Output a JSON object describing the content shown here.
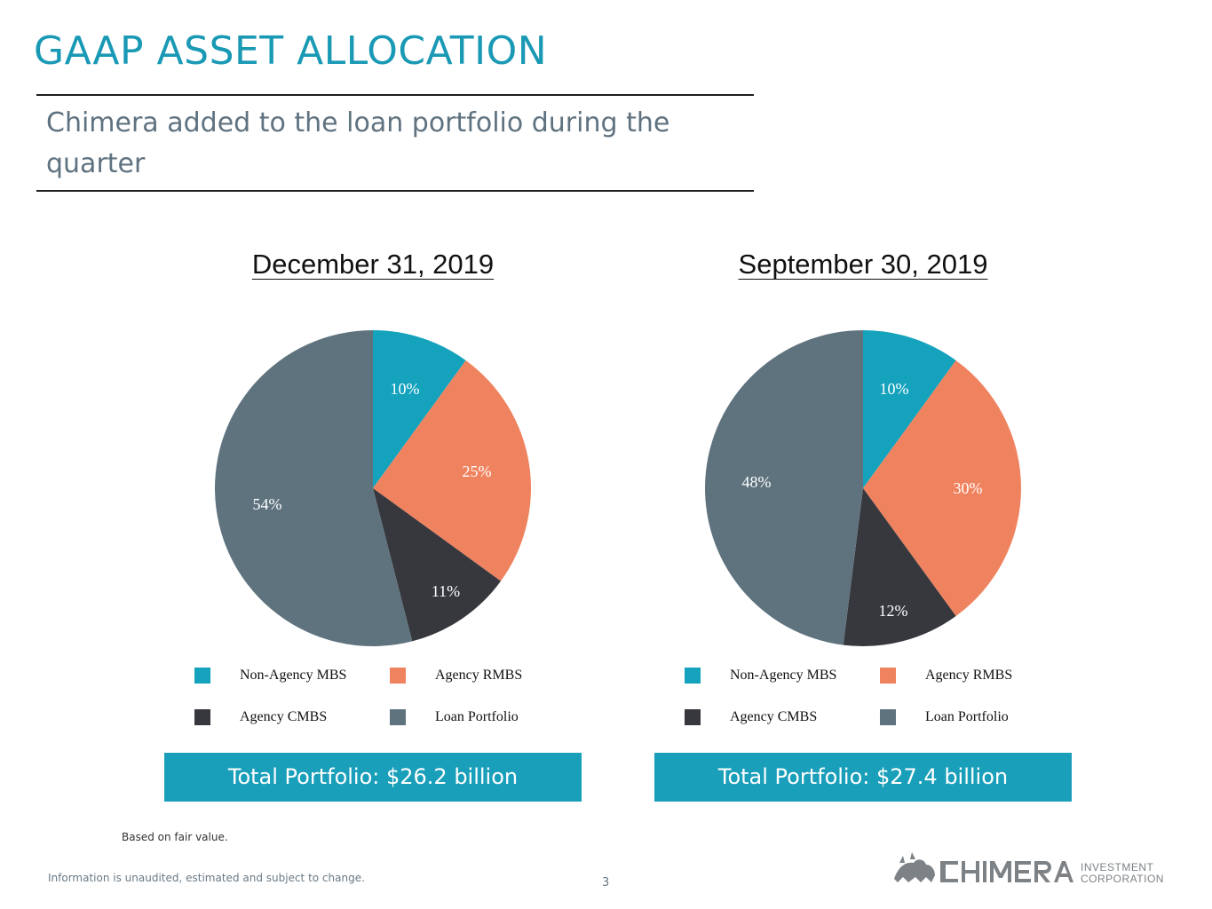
{
  "page": {
    "title": "GAAP ASSET ALLOCATION",
    "subtitle": "Chimera added to the loan portfolio during the quarter",
    "footnote": "Based on fair value.",
    "disclaimer": "Information is unaudited, estimated and subject to change.",
    "page_number": "3",
    "logo_text": "CHIMERA INVESTMENT CORPORATION"
  },
  "colors": {
    "title": "#1a99b5",
    "non_agency_mbs": "#14a2bd",
    "agency_rmbs": "#f0835f",
    "agency_cmbs": "#37383e",
    "loan_portfolio": "#5f737e",
    "total_box": "#1a9fba"
  },
  "legend": {
    "items": [
      {
        "label": "Non-Agency MBS",
        "color": "#14a2bd"
      },
      {
        "label": "Agency RMBS",
        "color": "#f0835f"
      },
      {
        "label": "Agency CMBS",
        "color": "#37383e"
      },
      {
        "label": "Loan Portfolio",
        "color": "#5f737e"
      }
    ]
  },
  "chart_data": [
    {
      "type": "pie",
      "title": "December 31, 2019",
      "categories": [
        "Non-Agency MBS",
        "Agency RMBS",
        "Agency CMBS",
        "Loan Portfolio"
      ],
      "values": [
        10,
        25,
        11,
        54
      ],
      "labels": [
        "10%",
        "25%",
        "11%",
        "54%"
      ],
      "colors": [
        "#14a2bd",
        "#f0835f",
        "#37383e",
        "#5f737e"
      ],
      "total": "Total Portfolio: $26.2 billion",
      "legend_position": "bottom"
    },
    {
      "type": "pie",
      "title": "September 30, 2019",
      "categories": [
        "Non-Agency MBS",
        "Agency RMBS",
        "Agency CMBS",
        "Loan Portfolio"
      ],
      "values": [
        10,
        30,
        12,
        48
      ],
      "labels": [
        "10%",
        "30%",
        "12%",
        "48%"
      ],
      "colors": [
        "#14a2bd",
        "#f0835f",
        "#37383e",
        "#5f737e"
      ],
      "total": "Total Portfolio: $27.4 billion",
      "legend_position": "bottom"
    }
  ]
}
